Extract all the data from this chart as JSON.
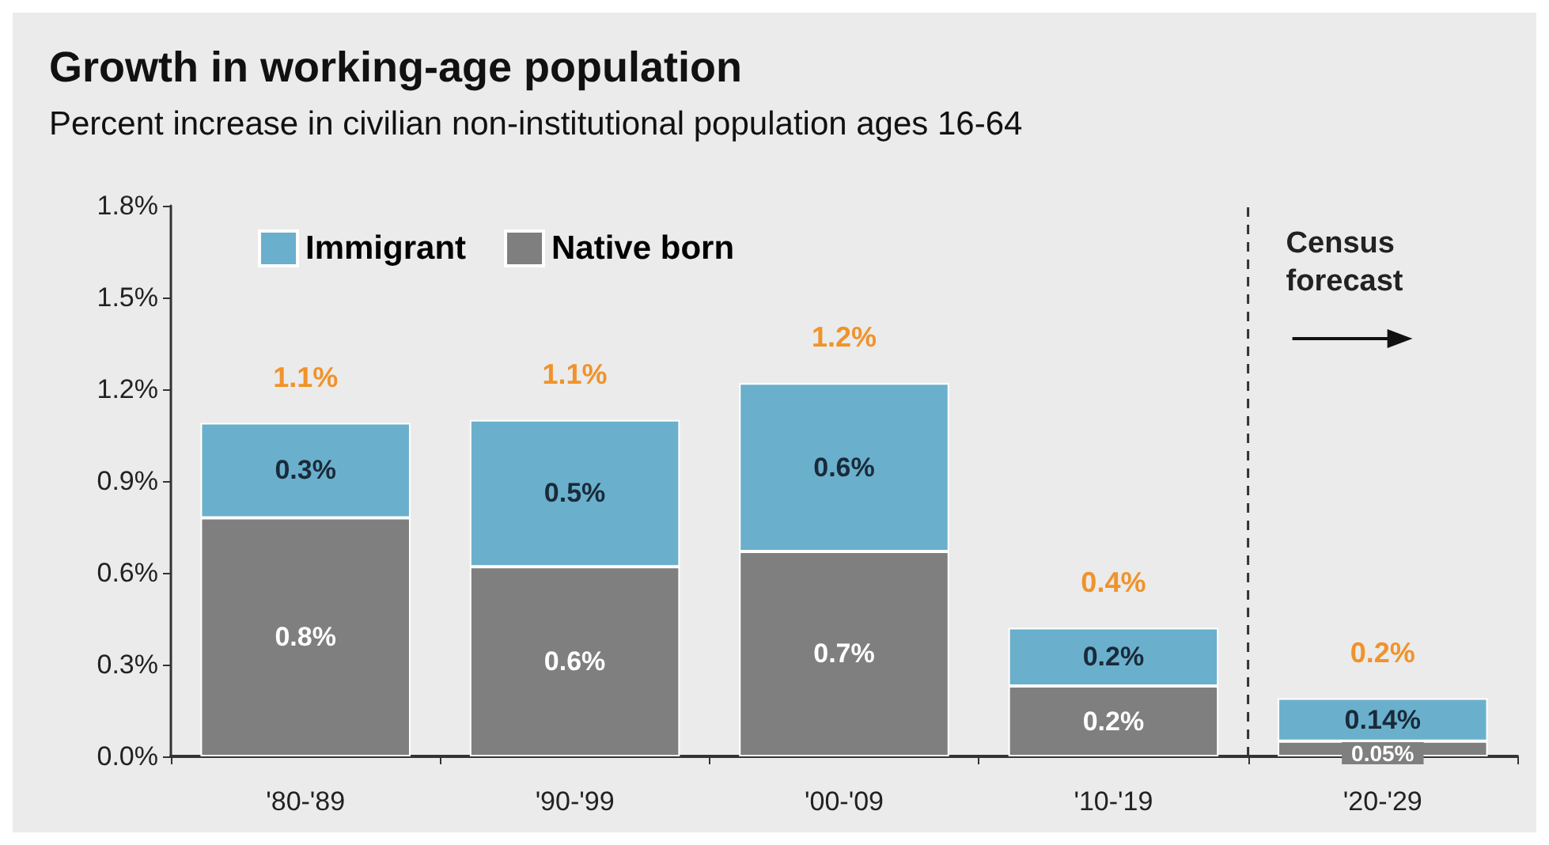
{
  "chart_data": {
    "type": "bar",
    "title": "Growth in working-age population",
    "subtitle": "Percent increase in civilian non-institutional population ages 16-64",
    "categories": [
      "'80-'89",
      "'90-'99",
      "'00-'09",
      "'10-'19",
      "'20-'29"
    ],
    "stacked": true,
    "series": [
      {
        "name": "Native born",
        "color": "#7f7f7f",
        "values": [
          0.78,
          0.62,
          0.67,
          0.23,
          0.05
        ],
        "value_labels": [
          "0.8%",
          "0.6%",
          "0.7%",
          "0.2%",
          "0.05%"
        ]
      },
      {
        "name": "Immigrant",
        "color": "#6ab0cc",
        "values": [
          0.31,
          0.48,
          0.55,
          0.19,
          0.14
        ],
        "value_labels": [
          "0.3%",
          "0.5%",
          "0.6%",
          "0.2%",
          "0.14%"
        ]
      }
    ],
    "totals": [
      "1.1%",
      "1.1%",
      "1.2%",
      "0.4%",
      "0.2%"
    ],
    "ylim": [
      0,
      1.8
    ],
    "yticks": [
      {
        "value": 0,
        "label": "0.0%"
      },
      {
        "value": 0.3,
        "label": "0.3%"
      },
      {
        "value": 0.6,
        "label": "0.6%"
      },
      {
        "value": 0.9,
        "label": "0.9%"
      },
      {
        "value": 1.2,
        "label": "1.2%"
      },
      {
        "value": 1.5,
        "label": "1.5%"
      },
      {
        "value": 1.8,
        "label": "1.8%"
      }
    ],
    "annotations": [
      "Census forecast"
    ],
    "legend": "top left",
    "grid": false
  }
}
